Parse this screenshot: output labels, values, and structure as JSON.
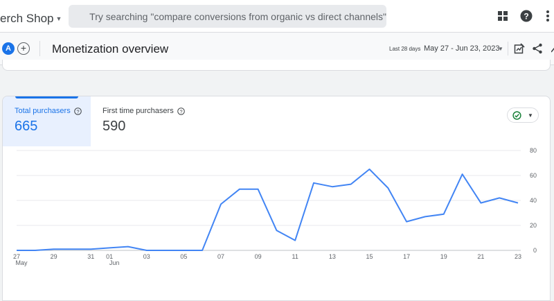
{
  "header": {
    "property_name": "erch Shop",
    "search_placeholder": "Try searching \"compare conversions from organic vs direct channels\""
  },
  "subheader": {
    "comparison_avatar": "A",
    "add_comparison": "+",
    "title": "Monetization overview",
    "date_range_label": "Last 28 days",
    "date_range": "May 27 - Jun 23, 2023"
  },
  "card": {
    "metrics": [
      {
        "label": "Total purchasers",
        "value": "665",
        "selected": true
      },
      {
        "label": "First time purchasers",
        "value": "590",
        "selected": false
      }
    ]
  },
  "colors": {
    "accent": "#1a73e8",
    "line": "#4285f4",
    "status_ok": "#188038"
  },
  "icons": {
    "search": "search-icon",
    "apps": "apps-grid-icon",
    "help": "help-icon",
    "more": "more-vert-icon",
    "customize_report": "customize-report-icon",
    "share": "share-icon",
    "insights": "insights-icon",
    "status": "check-circle-icon"
  },
  "chart_data": {
    "type": "line",
    "x": [
      "May 27",
      "May 28",
      "May 29",
      "May 30",
      "May 31",
      "Jun 01",
      "Jun 02",
      "Jun 03",
      "Jun 04",
      "Jun 05",
      "Jun 06",
      "Jun 07",
      "Jun 08",
      "Jun 09",
      "Jun 10",
      "Jun 11",
      "Jun 12",
      "Jun 13",
      "Jun 14",
      "Jun 15",
      "Jun 16",
      "Jun 17",
      "Jun 18",
      "Jun 19",
      "Jun 20",
      "Jun 21",
      "Jun 22",
      "Jun 23"
    ],
    "series": [
      {
        "values": [
          0,
          0,
          1,
          1,
          1,
          2,
          3,
          0,
          0,
          0,
          0,
          37,
          49,
          49,
          16,
          8,
          54,
          51,
          53,
          65,
          50,
          23,
          27,
          29,
          61,
          38,
          42,
          38
        ]
      }
    ],
    "x_tick_labels": [
      {
        "index": 0,
        "label": "27",
        "sublabel": "May"
      },
      {
        "index": 2,
        "label": "29"
      },
      {
        "index": 4,
        "label": "31"
      },
      {
        "index": 5,
        "label": "01",
        "sublabel": "Jun"
      },
      {
        "index": 7,
        "label": "03"
      },
      {
        "index": 9,
        "label": "05"
      },
      {
        "index": 11,
        "label": "07"
      },
      {
        "index": 13,
        "label": "09"
      },
      {
        "index": 15,
        "label": "11"
      },
      {
        "index": 17,
        "label": "13"
      },
      {
        "index": 19,
        "label": "15"
      },
      {
        "index": 21,
        "label": "17"
      },
      {
        "index": 23,
        "label": "19"
      },
      {
        "index": 25,
        "label": "21"
      },
      {
        "index": 27,
        "label": "23"
      }
    ],
    "y_ticks": [
      0,
      20,
      40,
      60,
      80
    ],
    "ylim": [
      0,
      80
    ],
    "grid": true,
    "title": "",
    "xlabel": "",
    "ylabel": ""
  }
}
